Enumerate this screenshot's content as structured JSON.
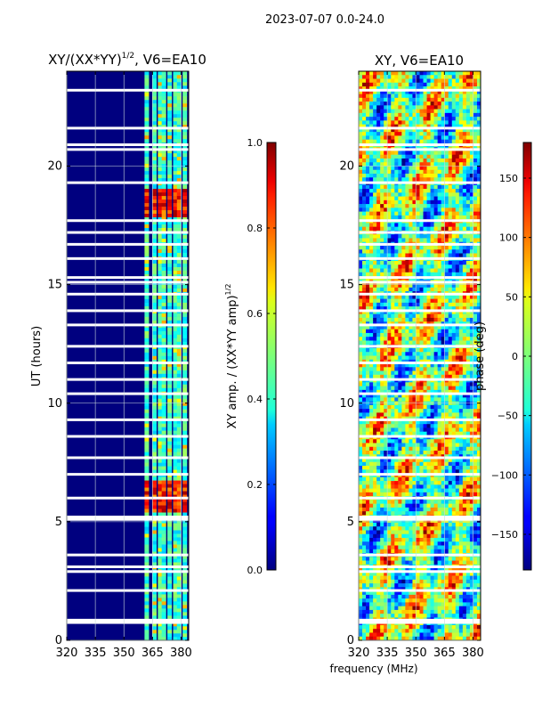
{
  "figure": {
    "suptitle": "2023-07-07 0.0-24.0",
    "xlabel": "frequency (MHz)"
  },
  "colors": {
    "background_blue": "#00007f",
    "stripe": "#ffffff",
    "grid": "#c9d9d9"
  },
  "chart_data": [
    {
      "type": "heatmap",
      "title": "XY/(XX*YY)",
      "title_exponent": "1/2",
      "title_suffix": ", V6=EA10",
      "xlabel": "",
      "ylabel": "UT (hours)",
      "xlim": [
        320,
        384
      ],
      "ylim": [
        0,
        24
      ],
      "xticks": [
        320,
        335,
        350,
        365,
        380
      ],
      "yticks": [
        0,
        5,
        10,
        15,
        20
      ],
      "colormap": "jet",
      "colorbar": {
        "label": "XY amp. / (XX*YY amp)",
        "label_exponent": "1/2",
        "range": [
          0.0,
          1.0
        ],
        "ticks": [
          "0.0",
          "0.2",
          "0.4",
          "0.6",
          "0.8",
          "1.0"
        ]
      },
      "channel_columns_mhz": [
        362,
        366,
        369,
        371,
        374,
        377,
        379,
        382
      ],
      "flagged_hours": [
        0.75,
        0.85,
        2.1,
        2.9,
        3.1,
        3.6,
        5.1,
        5.2,
        6.0,
        7.0,
        7.7,
        8.6,
        9.3,
        10.4,
        11.0,
        11.7,
        12.4,
        13.3,
        13.9,
        14.6,
        15.1,
        15.3,
        16.1,
        16.7,
        17.2,
        17.7,
        19.3,
        20.7,
        20.9,
        21.6,
        23.2
      ]
    },
    {
      "type": "heatmap",
      "title": "XY, V6=EA10",
      "xlabel": "",
      "ylabel": "",
      "xlim": [
        320,
        384
      ],
      "ylim": [
        0,
        24
      ],
      "xticks": [
        320,
        335,
        350,
        365,
        380
      ],
      "yticks": [
        0,
        5,
        10,
        15,
        20
      ],
      "colormap": "jet",
      "colorbar": {
        "label": "phase (deg)",
        "range": [
          -180,
          180
        ],
        "ticks": [
          "−150",
          "−100",
          "−50",
          "0",
          "50",
          "100",
          "150"
        ]
      },
      "flagged_hours": [
        0.75,
        0.85,
        2.1,
        2.9,
        3.1,
        3.6,
        5.1,
        5.2,
        6.0,
        7.0,
        7.7,
        8.6,
        9.3,
        10.4,
        11.0,
        11.7,
        12.4,
        13.3,
        13.9,
        14.6,
        15.1,
        15.3,
        16.1,
        16.7,
        17.2,
        17.7,
        19.3,
        20.7,
        20.9,
        21.6,
        23.2
      ]
    }
  ]
}
